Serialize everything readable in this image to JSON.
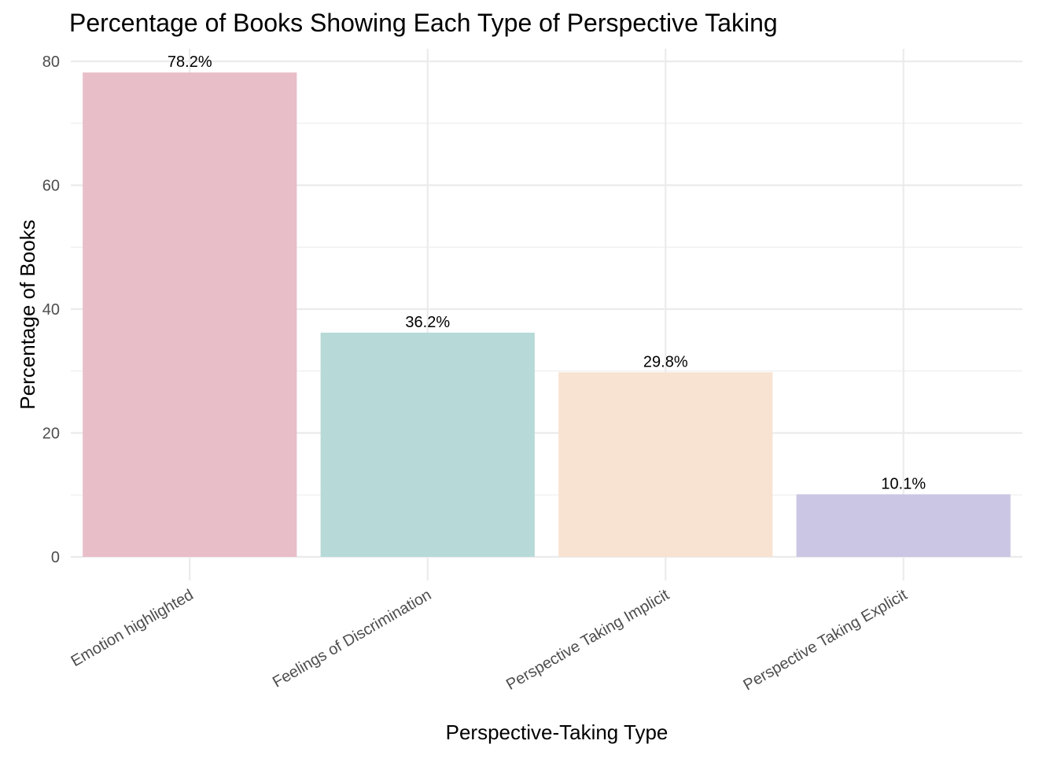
{
  "chart_data": {
    "type": "bar",
    "title": "Percentage of Books Showing Each Type of Perspective Taking",
    "xlabel": "Perspective-Taking Type",
    "ylabel": "Percentage of Books",
    "categories": [
      "Emotion highlighted",
      "Feelings of Discrimination",
      "Perspective Taking Implicit",
      "Perspective Taking Explicit"
    ],
    "values": [
      78.2,
      36.2,
      29.8,
      10.1
    ],
    "data_labels": [
      "78.2%",
      "36.2%",
      "29.8%",
      "10.1%"
    ],
    "colors": [
      "#e8bec9",
      "#b7dad9",
      "#f8e3d2",
      "#cbc6e3"
    ],
    "ylim": [
      0,
      80
    ],
    "yticks": [
      0,
      20,
      40,
      60,
      80
    ],
    "grid": true,
    "legend": "none"
  }
}
